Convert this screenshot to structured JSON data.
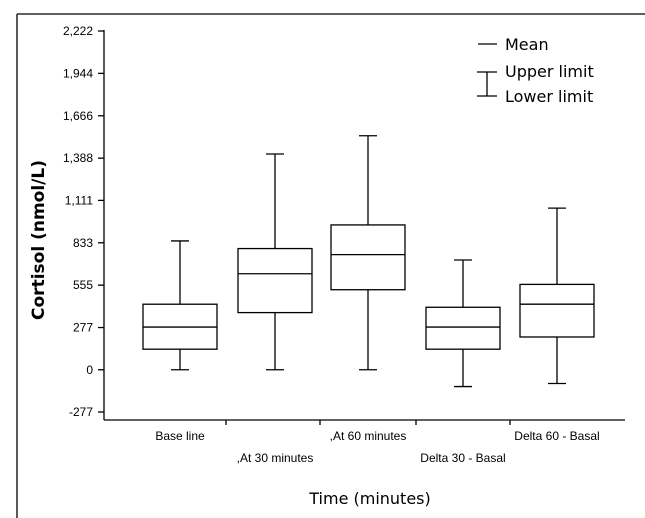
{
  "chart_data": {
    "type": "boxplot",
    "xlabel": "Time (minutes)",
    "ylabel": "Cortisol (nmol/L)",
    "y_ticks": [
      -277,
      0,
      277,
      555,
      833,
      1111,
      1388,
      1666,
      1944,
      2222
    ],
    "y_tick_labels": [
      "-277",
      "0",
      "277",
      "555",
      "833",
      "1,111",
      "1,388",
      "1,666",
      "1,944",
      "2,222"
    ],
    "ylim": [
      -277,
      2222
    ],
    "legend": {
      "placement": "top-right",
      "entries": [
        "Mean",
        "Upper limit",
        "Lower limit"
      ]
    },
    "boxes": [
      {
        "label": "Base line",
        "label_row": 0,
        "min": 0,
        "q1": 135,
        "median": 280,
        "q3": 430,
        "max": 845
      },
      {
        "label": ",At 30 minutes",
        "label_row": 1,
        "min": 0,
        "q1": 375,
        "median": 630,
        "q3": 795,
        "max": 1415
      },
      {
        "label": ",At 60 minutes",
        "label_row": 0,
        "min": 0,
        "q1": 525,
        "median": 755,
        "q3": 950,
        "max": 1535
      },
      {
        "label": "Delta 30 - Basal",
        "label_row": 1,
        "min": -110,
        "q1": 135,
        "median": 280,
        "q3": 410,
        "max": 720
      },
      {
        "label": "Delta 60 - Basal",
        "label_row": 0,
        "min": -90,
        "q1": 215,
        "median": 430,
        "q3": 560,
        "max": 1060
      }
    ]
  }
}
